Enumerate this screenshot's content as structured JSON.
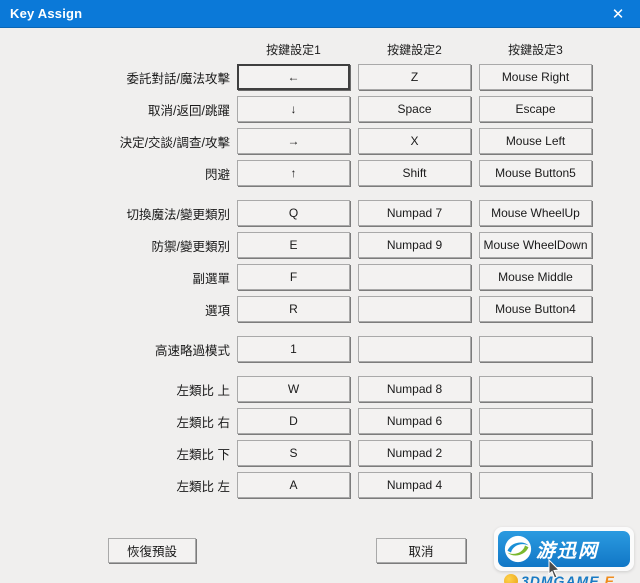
{
  "window": {
    "title": "Key Assign",
    "close_glyph": "✕",
    "titlebar_color": "#0b79d8",
    "body_color": "#f0efee"
  },
  "columns": [
    "按鍵設定1",
    "按鍵設定2",
    "按鍵設定3"
  ],
  "groups": [
    {
      "rows": [
        {
          "label": "委託對話/魔法攻擊",
          "keys": [
            "←",
            "Z",
            "Mouse Right"
          ],
          "focused_col": 0
        },
        {
          "label": "取消/返回/跳躍",
          "keys": [
            "↓",
            "Space",
            "Escape"
          ]
        },
        {
          "label": "決定/交談/調查/攻擊",
          "keys": [
            "→",
            "X",
            "Mouse Left"
          ]
        },
        {
          "label": "閃避",
          "keys": [
            "↑",
            "Shift",
            "Mouse Button5"
          ]
        }
      ]
    },
    {
      "rows": [
        {
          "label": "切換魔法/變更類別",
          "keys": [
            "Q",
            "Numpad 7",
            "Mouse WheelUp"
          ]
        },
        {
          "label": "防禦/變更類別",
          "keys": [
            "E",
            "Numpad 9",
            "Mouse WheelDown"
          ]
        },
        {
          "label": "副選單",
          "keys": [
            "F",
            "",
            "Mouse Middle"
          ]
        },
        {
          "label": "選項",
          "keys": [
            "R",
            "",
            "Mouse Button4"
          ]
        }
      ]
    },
    {
      "rows": [
        {
          "label": "高速略過模式",
          "keys": [
            "1",
            "",
            ""
          ]
        }
      ]
    },
    {
      "rows": [
        {
          "label": "左類比 上",
          "keys": [
            "W",
            "Numpad 8",
            ""
          ]
        },
        {
          "label": "左類比 右",
          "keys": [
            "D",
            "Numpad 6",
            ""
          ]
        },
        {
          "label": "左類比 下",
          "keys": [
            "S",
            "Numpad 2",
            ""
          ]
        },
        {
          "label": "左類比 左",
          "keys": [
            "A",
            "Numpad 4",
            ""
          ]
        }
      ]
    }
  ],
  "footer": {
    "restore_label": "恢復預設",
    "cancel_label": "取消"
  },
  "watermark": {
    "brand": "游迅网",
    "subtext": "3DMGAME",
    "badge_color": "#1a8fd6",
    "accent_green": "#7ab82e",
    "accent_orange": "#f08c1e"
  }
}
